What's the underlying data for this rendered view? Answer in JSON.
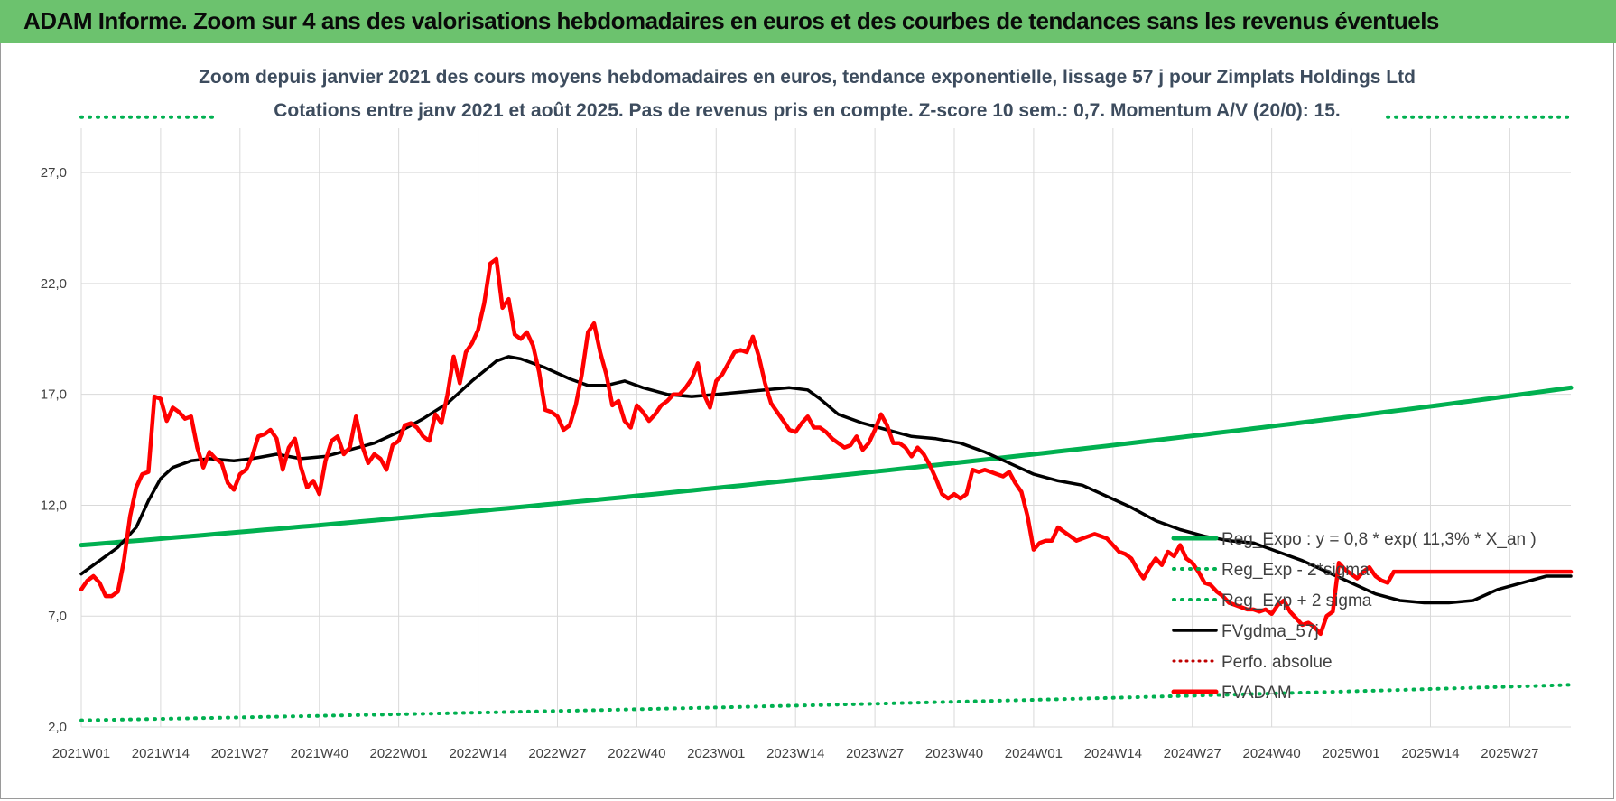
{
  "banner": {
    "title": "ADAM Informe. Zoom sur 4 ans des valorisations hebdomadaires en euros et des courbes de tendances sans les revenus éventuels",
    "color": "#6cc26e"
  },
  "chart_data": {
    "type": "line",
    "title_line1": "Zoom depuis janvier 2021 des cours moyens hebdomadaires en euros, tendance exponentielle, lissage 57 j pour Zimplats Holdings Ltd",
    "title_line2": "Cotations entre janv 2021 et août 2025.  Pas de revenus pris en compte. Z-score 10 sem.: 0,7. Momentum A/V (20/0): 15.",
    "ylim": [
      2,
      29
    ],
    "yticks": [
      "2,0",
      "7,0",
      "12,0",
      "17,0",
      "22,0",
      "27,0"
    ],
    "ytick_values": [
      2,
      7,
      12,
      17,
      22,
      27
    ],
    "xticks": [
      "2021W01",
      "2021W14",
      "2021W27",
      "2021W40",
      "2022W01",
      "2022W14",
      "2022W27",
      "2022W40",
      "2023W01",
      "2023W14",
      "2023W27",
      "2023W40",
      "2024W01",
      "2024W14",
      "2024W27",
      "2024W40",
      "2025W01",
      "2025W14",
      "2025W27"
    ],
    "x_weeks": 245,
    "grid": true,
    "legend_position": "bottom-right",
    "legend": [
      "Reg_Expo : y = 0,8 * exp( 11,3% *  X_an )",
      "Reg_Exp - 2*sigma",
      "Reg_Exp + 2 sigma",
      "FVgdma_57j",
      "Perfo. absolue",
      "FVADAM"
    ],
    "series": [
      {
        "name": "Reg_Expo : y = 0,8 * exp( 11,3% *  X_an )",
        "color": "#00b050",
        "style": "solid",
        "points": [
          [
            0,
            10.2
          ],
          [
            244,
            17.3
          ]
        ]
      },
      {
        "name": "Reg_Exp - 2*sigma",
        "color": "#00b050",
        "style": "dotted",
        "points": [
          [
            0,
            2.3
          ],
          [
            244,
            3.9
          ]
        ]
      },
      {
        "name": "Reg_Exp + 2 sigma",
        "color": "#00b050",
        "style": "dotted",
        "points": [
          [
            0,
            29.5
          ],
          [
            22,
            29.5
          ]
        ]
      },
      {
        "name": "Reg_Exp + 2 sigma (right segment)",
        "color": "#00b050",
        "style": "dotted",
        "points": [
          [
            214,
            29.5
          ],
          [
            244,
            29.5
          ]
        ]
      },
      {
        "name": "FVgdma_57j",
        "color": "#000000",
        "style": "solid",
        "points": [
          [
            0,
            8.9
          ],
          [
            3,
            9.5
          ],
          [
            6,
            10.1
          ],
          [
            9,
            11.0
          ],
          [
            11,
            12.2
          ],
          [
            13,
            13.2
          ],
          [
            15,
            13.7
          ],
          [
            18,
            14.0
          ],
          [
            21,
            14.1
          ],
          [
            25,
            14.0
          ],
          [
            28,
            14.1
          ],
          [
            32,
            14.3
          ],
          [
            36,
            14.1
          ],
          [
            40,
            14.2
          ],
          [
            44,
            14.5
          ],
          [
            48,
            14.8
          ],
          [
            52,
            15.3
          ],
          [
            56,
            15.9
          ],
          [
            60,
            16.6
          ],
          [
            64,
            17.6
          ],
          [
            68,
            18.5
          ],
          [
            70,
            18.7
          ],
          [
            72,
            18.6
          ],
          [
            76,
            18.2
          ],
          [
            80,
            17.7
          ],
          [
            83,
            17.4
          ],
          [
            86,
            17.4
          ],
          [
            89,
            17.6
          ],
          [
            92,
            17.3
          ],
          [
            96,
            17.0
          ],
          [
            100,
            16.9
          ],
          [
            104,
            17.0
          ],
          [
            108,
            17.1
          ],
          [
            112,
            17.2
          ],
          [
            116,
            17.3
          ],
          [
            119,
            17.2
          ],
          [
            121,
            16.8
          ],
          [
            124,
            16.1
          ],
          [
            128,
            15.7
          ],
          [
            132,
            15.4
          ],
          [
            136,
            15.1
          ],
          [
            140,
            15.0
          ],
          [
            144,
            14.8
          ],
          [
            148,
            14.4
          ],
          [
            152,
            13.9
          ],
          [
            156,
            13.4
          ],
          [
            160,
            13.1
          ],
          [
            164,
            12.9
          ],
          [
            168,
            12.4
          ],
          [
            172,
            11.9
          ],
          [
            176,
            11.3
          ],
          [
            180,
            10.9
          ],
          [
            184,
            10.6
          ],
          [
            188,
            10.4
          ],
          [
            192,
            10.3
          ],
          [
            196,
            9.9
          ],
          [
            200,
            9.5
          ],
          [
            204,
            9.0
          ],
          [
            208,
            8.5
          ],
          [
            212,
            8.0
          ],
          [
            216,
            7.7
          ],
          [
            220,
            7.6
          ],
          [
            224,
            7.6
          ],
          [
            228,
            7.7
          ],
          [
            232,
            8.2
          ],
          [
            236,
            8.5
          ],
          [
            240,
            8.8
          ],
          [
            244,
            8.8
          ]
        ]
      },
      {
        "name": "FVADAM",
        "color": "#ff0000",
        "style": "solid",
        "points": [
          [
            0,
            8.2
          ],
          [
            1,
            8.6
          ],
          [
            2,
            8.8
          ],
          [
            3,
            8.5
          ],
          [
            4,
            7.9
          ],
          [
            5,
            7.9
          ],
          [
            6,
            8.1
          ],
          [
            7,
            9.5
          ],
          [
            8,
            11.5
          ],
          [
            9,
            12.8
          ],
          [
            10,
            13.4
          ],
          [
            11,
            13.5
          ],
          [
            12,
            16.9
          ],
          [
            13,
            16.8
          ],
          [
            14,
            15.8
          ],
          [
            15,
            16.4
          ],
          [
            16,
            16.2
          ],
          [
            17,
            15.9
          ],
          [
            18,
            16.0
          ],
          [
            19,
            14.6
          ],
          [
            20,
            13.7
          ],
          [
            21,
            14.4
          ],
          [
            22,
            14.1
          ],
          [
            23,
            13.9
          ],
          [
            24,
            13.0
          ],
          [
            25,
            12.7
          ],
          [
            26,
            13.4
          ],
          [
            27,
            13.6
          ],
          [
            28,
            14.2
          ],
          [
            29,
            15.1
          ],
          [
            30,
            15.2
          ],
          [
            31,
            15.4
          ],
          [
            32,
            15.0
          ],
          [
            33,
            13.6
          ],
          [
            34,
            14.6
          ],
          [
            35,
            15.0
          ],
          [
            36,
            13.7
          ],
          [
            37,
            12.8
          ],
          [
            38,
            13.1
          ],
          [
            39,
            12.5
          ],
          [
            40,
            14.0
          ],
          [
            41,
            14.9
          ],
          [
            42,
            15.1
          ],
          [
            43,
            14.3
          ],
          [
            44,
            14.6
          ],
          [
            45,
            16.0
          ],
          [
            46,
            14.7
          ],
          [
            47,
            13.9
          ],
          [
            48,
            14.3
          ],
          [
            49,
            14.1
          ],
          [
            50,
            13.6
          ],
          [
            51,
            14.7
          ],
          [
            52,
            14.9
          ],
          [
            53,
            15.6
          ],
          [
            54,
            15.7
          ],
          [
            55,
            15.5
          ],
          [
            56,
            15.1
          ],
          [
            57,
            14.9
          ],
          [
            58,
            16.1
          ],
          [
            59,
            15.7
          ],
          [
            60,
            17.0
          ],
          [
            61,
            18.7
          ],
          [
            62,
            17.5
          ],
          [
            63,
            18.9
          ],
          [
            64,
            19.3
          ],
          [
            65,
            19.9
          ],
          [
            66,
            21.1
          ],
          [
            67,
            22.9
          ],
          [
            68,
            23.1
          ],
          [
            69,
            20.9
          ],
          [
            70,
            21.3
          ],
          [
            71,
            19.7
          ],
          [
            72,
            19.5
          ],
          [
            73,
            19.8
          ],
          [
            74,
            19.2
          ],
          [
            75,
            18.0
          ],
          [
            76,
            16.3
          ],
          [
            77,
            16.2
          ],
          [
            78,
            16.0
          ],
          [
            79,
            15.4
          ],
          [
            80,
            15.6
          ],
          [
            81,
            16.5
          ],
          [
            82,
            17.9
          ],
          [
            83,
            19.8
          ],
          [
            84,
            20.2
          ],
          [
            85,
            18.9
          ],
          [
            86,
            17.9
          ],
          [
            87,
            16.5
          ],
          [
            88,
            16.7
          ],
          [
            89,
            15.8
          ],
          [
            90,
            15.5
          ],
          [
            91,
            16.5
          ],
          [
            92,
            16.2
          ],
          [
            93,
            15.8
          ],
          [
            94,
            16.1
          ],
          [
            95,
            16.5
          ],
          [
            96,
            16.7
          ],
          [
            97,
            17.0
          ],
          [
            98,
            17.0
          ],
          [
            99,
            17.3
          ],
          [
            100,
            17.7
          ],
          [
            101,
            18.4
          ],
          [
            102,
            17.0
          ],
          [
            103,
            16.4
          ],
          [
            104,
            17.6
          ],
          [
            105,
            17.9
          ],
          [
            106,
            18.4
          ],
          [
            107,
            18.9
          ],
          [
            108,
            19.0
          ],
          [
            109,
            18.9
          ],
          [
            110,
            19.6
          ],
          [
            111,
            18.7
          ],
          [
            112,
            17.5
          ],
          [
            113,
            16.6
          ],
          [
            114,
            16.2
          ],
          [
            115,
            15.8
          ],
          [
            116,
            15.4
          ],
          [
            117,
            15.3
          ],
          [
            118,
            15.7
          ],
          [
            119,
            16.0
          ],
          [
            120,
            15.5
          ],
          [
            121,
            15.5
          ],
          [
            122,
            15.3
          ],
          [
            123,
            15.0
          ],
          [
            124,
            14.8
          ],
          [
            125,
            14.6
          ],
          [
            126,
            14.7
          ],
          [
            127,
            15.1
          ],
          [
            128,
            14.5
          ],
          [
            129,
            14.8
          ],
          [
            130,
            15.4
          ],
          [
            131,
            16.1
          ],
          [
            132,
            15.6
          ],
          [
            133,
            14.8
          ],
          [
            134,
            14.8
          ],
          [
            135,
            14.6
          ],
          [
            136,
            14.2
          ],
          [
            137,
            14.6
          ],
          [
            138,
            14.3
          ],
          [
            139,
            13.8
          ],
          [
            140,
            13.2
          ],
          [
            141,
            12.5
          ],
          [
            142,
            12.3
          ],
          [
            143,
            12.5
          ],
          [
            144,
            12.3
          ],
          [
            145,
            12.5
          ],
          [
            146,
            13.6
          ],
          [
            147,
            13.5
          ],
          [
            148,
            13.6
          ],
          [
            149,
            13.5
          ],
          [
            150,
            13.4
          ],
          [
            151,
            13.3
          ],
          [
            152,
            13.5
          ],
          [
            153,
            13.0
          ],
          [
            154,
            12.6
          ],
          [
            155,
            11.5
          ],
          [
            156,
            10.0
          ],
          [
            157,
            10.3
          ],
          [
            158,
            10.4
          ],
          [
            159,
            10.4
          ],
          [
            160,
            11.0
          ],
          [
            161,
            10.8
          ],
          [
            162,
            10.6
          ],
          [
            163,
            10.4
          ],
          [
            164,
            10.5
          ],
          [
            165,
            10.6
          ],
          [
            166,
            10.7
          ],
          [
            167,
            10.6
          ],
          [
            168,
            10.5
          ],
          [
            169,
            10.2
          ],
          [
            170,
            9.9
          ],
          [
            171,
            9.8
          ],
          [
            172,
            9.6
          ],
          [
            173,
            9.1
          ],
          [
            174,
            8.7
          ],
          [
            175,
            9.2
          ],
          [
            176,
            9.6
          ],
          [
            177,
            9.3
          ],
          [
            178,
            9.9
          ],
          [
            179,
            9.7
          ],
          [
            180,
            10.2
          ],
          [
            181,
            9.6
          ],
          [
            182,
            9.4
          ],
          [
            183,
            9.0
          ],
          [
            184,
            8.5
          ],
          [
            185,
            8.4
          ],
          [
            186,
            8.1
          ],
          [
            187,
            7.9
          ],
          [
            188,
            7.6
          ],
          [
            189,
            7.5
          ],
          [
            190,
            7.4
          ],
          [
            191,
            7.3
          ],
          [
            192,
            7.3
          ],
          [
            193,
            7.2
          ],
          [
            194,
            7.3
          ],
          [
            195,
            7.1
          ],
          [
            196,
            7.5
          ],
          [
            197,
            7.7
          ],
          [
            198,
            7.2
          ],
          [
            199,
            6.9
          ],
          [
            200,
            6.6
          ],
          [
            201,
            6.7
          ],
          [
            202,
            6.5
          ],
          [
            203,
            6.2
          ],
          [
            204,
            7.0
          ],
          [
            205,
            7.2
          ],
          [
            206,
            9.4
          ],
          [
            207,
            9.1
          ],
          [
            208,
            8.9
          ],
          [
            209,
            8.7
          ],
          [
            210,
            9.0
          ],
          [
            211,
            9.2
          ],
          [
            212,
            8.8
          ],
          [
            213,
            8.6
          ],
          [
            214,
            8.5
          ],
          [
            215,
            9.0
          ]
        ]
      },
      {
        "name": "FVADAM (2025)",
        "color": "#ff0000",
        "style": "solid",
        "points": [
          [
            215,
            9.0
          ],
          [
            244,
            9.0
          ]
        ]
      }
    ]
  }
}
